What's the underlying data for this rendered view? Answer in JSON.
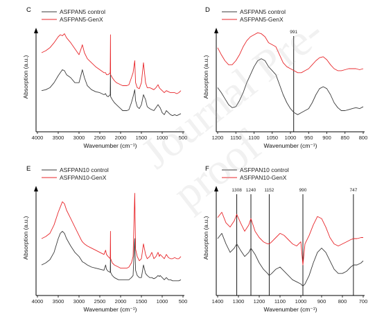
{
  "watermark": "Journal Pre-proof",
  "colors": {
    "control": "#3a3a3a",
    "genx": "#e8262a",
    "axis": "#000000"
  },
  "chart_data": [
    {
      "panel": "C",
      "type": "line",
      "xlabel": "Wavenumber (cm⁻¹)",
      "ylabel": "Absorption (a.u.)",
      "xlim": [
        4000,
        500
      ],
      "x_reversed": true,
      "xticks": [
        4000,
        3500,
        3000,
        2500,
        2000,
        1500,
        1000,
        500
      ],
      "legend_position": "top-left",
      "series": [
        {
          "name": "ASFPAN5 control",
          "color": "#3a3a3a",
          "x": [
            3900,
            3800,
            3700,
            3600,
            3500,
            3450,
            3400,
            3350,
            3300,
            3200,
            3100,
            3000,
            2950,
            2920,
            2870,
            2800,
            2700,
            2600,
            2500,
            2400,
            2360,
            2340,
            2300,
            2250,
            2244,
            2240,
            2200,
            2150,
            2100,
            2050,
            2000,
            1950,
            1900,
            1850,
            1800,
            1740,
            1700,
            1660,
            1640,
            1600,
            1550,
            1500,
            1450,
            1400,
            1360,
            1300,
            1250,
            1200,
            1150,
            1100,
            1070,
            1050,
            1000,
            950,
            900,
            850,
            800,
            750,
            700,
            650,
            600,
            550
          ],
          "y": [
            0.42,
            0.43,
            0.45,
            0.5,
            0.57,
            0.6,
            0.63,
            0.62,
            0.58,
            0.55,
            0.5,
            0.5,
            0.58,
            0.63,
            0.55,
            0.47,
            0.43,
            0.41,
            0.4,
            0.38,
            0.39,
            0.37,
            0.36,
            0.38,
            0.7,
            0.36,
            0.33,
            0.3,
            0.28,
            0.26,
            0.24,
            0.22,
            0.22,
            0.22,
            0.23,
            0.3,
            0.36,
            0.43,
            0.32,
            0.26,
            0.24,
            0.28,
            0.38,
            0.33,
            0.26,
            0.24,
            0.23,
            0.22,
            0.25,
            0.28,
            0.26,
            0.25,
            0.2,
            0.18,
            0.22,
            0.2,
            0.18,
            0.17,
            0.18,
            0.17,
            0.18,
            0.19
          ]
        },
        {
          "name": "ASFPAN5-GenX",
          "color": "#e8262a",
          "x": [
            3900,
            3800,
            3700,
            3600,
            3500,
            3450,
            3400,
            3350,
            3300,
            3200,
            3100,
            3000,
            2950,
            2920,
            2870,
            2800,
            2700,
            2600,
            2500,
            2400,
            2360,
            2340,
            2300,
            2250,
            2244,
            2240,
            2200,
            2150,
            2100,
            2050,
            2000,
            1950,
            1900,
            1850,
            1800,
            1740,
            1700,
            1660,
            1640,
            1600,
            1550,
            1500,
            1450,
            1400,
            1360,
            1300,
            1250,
            1200,
            1150,
            1100,
            1070,
            1050,
            1000,
            950,
            900,
            850,
            800,
            750,
            700,
            650,
            600,
            550
          ],
          "y": [
            0.8,
            0.82,
            0.85,
            0.9,
            0.96,
            0.98,
            0.97,
            0.99,
            0.95,
            0.9,
            0.84,
            0.78,
            0.84,
            0.88,
            0.8,
            0.74,
            0.7,
            0.66,
            0.63,
            0.6,
            0.6,
            0.58,
            0.58,
            0.6,
            0.98,
            0.58,
            0.55,
            0.52,
            0.5,
            0.49,
            0.48,
            0.47,
            0.47,
            0.47,
            0.48,
            0.55,
            0.6,
            0.72,
            0.5,
            0.45,
            0.44,
            0.5,
            0.7,
            0.5,
            0.45,
            0.45,
            0.44,
            0.43,
            0.45,
            0.48,
            0.45,
            0.44,
            0.42,
            0.4,
            0.42,
            0.41,
            0.4,
            0.4,
            0.4,
            0.39,
            0.4,
            0.42
          ]
        }
      ]
    },
    {
      "panel": "D",
      "type": "line",
      "xlabel": "Wavenumber (cm⁻¹)",
      "ylabel": "Absorption (a.u.)",
      "xlim": [
        1200,
        800
      ],
      "x_reversed": true,
      "xticks": [
        1200,
        1150,
        1100,
        1050,
        1000,
        950,
        900,
        850,
        800
      ],
      "markers": [
        991
      ],
      "legend_position": "top-left",
      "series": [
        {
          "name": "ASFPAN5 control",
          "color": "#3a3a3a",
          "x": [
            1200,
            1190,
            1180,
            1170,
            1160,
            1150,
            1140,
            1130,
            1120,
            1110,
            1100,
            1090,
            1080,
            1070,
            1060,
            1050,
            1040,
            1030,
            1020,
            1010,
            1000,
            990,
            980,
            970,
            960,
            950,
            940,
            930,
            920,
            910,
            900,
            890,
            880,
            870,
            860,
            850,
            840,
            830,
            820,
            810,
            800
          ],
          "y": [
            0.45,
            0.4,
            0.34,
            0.28,
            0.25,
            0.26,
            0.32,
            0.4,
            0.5,
            0.58,
            0.66,
            0.72,
            0.74,
            0.72,
            0.66,
            0.62,
            0.58,
            0.48,
            0.38,
            0.3,
            0.24,
            0.2,
            0.18,
            0.2,
            0.22,
            0.24,
            0.3,
            0.38,
            0.44,
            0.46,
            0.44,
            0.38,
            0.3,
            0.25,
            0.22,
            0.22,
            0.23,
            0.24,
            0.25,
            0.24,
            0.26
          ]
        },
        {
          "name": "ASFPAN5-GenX",
          "color": "#e8262a",
          "x": [
            1200,
            1190,
            1180,
            1170,
            1160,
            1150,
            1140,
            1130,
            1120,
            1110,
            1100,
            1090,
            1080,
            1070,
            1060,
            1050,
            1040,
            1030,
            1020,
            1010,
            1000,
            990,
            980,
            970,
            960,
            950,
            940,
            930,
            920,
            910,
            900,
            890,
            880,
            870,
            860,
            850,
            840,
            830,
            820,
            810,
            800
          ],
          "y": [
            0.85,
            0.78,
            0.72,
            0.68,
            0.68,
            0.72,
            0.78,
            0.86,
            0.92,
            0.96,
            0.98,
            1.0,
            0.99,
            0.96,
            0.9,
            0.88,
            0.86,
            0.78,
            0.7,
            0.66,
            0.64,
            0.62,
            0.6,
            0.6,
            0.62,
            0.64,
            0.68,
            0.72,
            0.75,
            0.76,
            0.73,
            0.68,
            0.64,
            0.62,
            0.62,
            0.63,
            0.64,
            0.64,
            0.64,
            0.63,
            0.64
          ]
        }
      ]
    },
    {
      "panel": "E",
      "type": "line",
      "xlabel": "Wavenumber (cm⁻¹)",
      "ylabel": "Absorption (a.u.)",
      "xlim": [
        4000,
        500
      ],
      "x_reversed": true,
      "xticks": [
        4000,
        3500,
        3000,
        2500,
        2000,
        1500,
        1000,
        500
      ],
      "legend_position": "top-left",
      "series": [
        {
          "name": "ASFPAN10 control",
          "color": "#3a3a3a",
          "x": [
            3900,
            3800,
            3700,
            3600,
            3500,
            3450,
            3400,
            3350,
            3300,
            3200,
            3100,
            3000,
            2950,
            2920,
            2870,
            2800,
            2700,
            2600,
            2500,
            2400,
            2360,
            2340,
            2300,
            2250,
            2244,
            2240,
            2200,
            2150,
            2100,
            2050,
            2000,
            1950,
            1900,
            1850,
            1800,
            1740,
            1700,
            1660,
            1640,
            1600,
            1550,
            1500,
            1450,
            1400,
            1360,
            1300,
            1250,
            1200,
            1150,
            1100,
            1070,
            1050,
            1000,
            950,
            900,
            850,
            800,
            750,
            700,
            650,
            600,
            550
          ],
          "y": [
            0.3,
            0.32,
            0.35,
            0.42,
            0.55,
            0.6,
            0.62,
            0.6,
            0.55,
            0.48,
            0.42,
            0.38,
            0.35,
            0.33,
            0.32,
            0.3,
            0.28,
            0.27,
            0.26,
            0.25,
            0.3,
            0.26,
            0.24,
            0.23,
            0.4,
            0.23,
            0.2,
            0.18,
            0.17,
            0.16,
            0.16,
            0.16,
            0.16,
            0.16,
            0.16,
            0.18,
            0.2,
            0.55,
            0.25,
            0.2,
            0.18,
            0.18,
            0.3,
            0.22,
            0.2,
            0.18,
            0.18,
            0.17,
            0.18,
            0.2,
            0.19,
            0.2,
            0.18,
            0.16,
            0.18,
            0.16,
            0.16,
            0.15,
            0.15,
            0.15,
            0.15,
            0.16
          ]
        },
        {
          "name": "ASFPAN10-GenX",
          "color": "#e8262a",
          "x": [
            3900,
            3800,
            3700,
            3600,
            3500,
            3450,
            3400,
            3350,
            3300,
            3200,
            3100,
            3000,
            2950,
            2920,
            2870,
            2800,
            2700,
            2600,
            2500,
            2400,
            2360,
            2340,
            2300,
            2250,
            2244,
            2240,
            2200,
            2150,
            2100,
            2050,
            2000,
            1950,
            1900,
            1850,
            1800,
            1740,
            1700,
            1660,
            1640,
            1600,
            1550,
            1500,
            1450,
            1400,
            1360,
            1300,
            1250,
            1200,
            1150,
            1100,
            1070,
            1050,
            1000,
            950,
            900,
            850,
            800,
            750,
            700,
            650,
            600,
            550
          ],
          "y": [
            0.55,
            0.57,
            0.6,
            0.68,
            0.8,
            0.85,
            0.9,
            0.88,
            0.82,
            0.74,
            0.66,
            0.58,
            0.54,
            0.52,
            0.5,
            0.48,
            0.46,
            0.44,
            0.42,
            0.4,
            0.44,
            0.4,
            0.38,
            0.36,
            0.62,
            0.36,
            0.32,
            0.3,
            0.29,
            0.28,
            0.27,
            0.27,
            0.27,
            0.27,
            0.28,
            0.32,
            0.38,
            0.98,
            0.45,
            0.38,
            0.34,
            0.36,
            0.5,
            0.4,
            0.36,
            0.38,
            0.42,
            0.36,
            0.38,
            0.42,
            0.38,
            0.4,
            0.38,
            0.36,
            0.4,
            0.37,
            0.36,
            0.36,
            0.37,
            0.36,
            0.36,
            0.38
          ]
        }
      ]
    },
    {
      "panel": "F",
      "type": "line",
      "xlabel": "Wavenumber (cm⁻¹)",
      "ylabel": "Absorption (a.u.)",
      "xlim": [
        1400,
        700
      ],
      "x_reversed": true,
      "xticks": [
        1400,
        1300,
        1200,
        1100,
        1000,
        900,
        800,
        700
      ],
      "markers": [
        1308,
        1240,
        1152,
        990,
        747
      ],
      "legend_position": "top-left",
      "series": [
        {
          "name": "ASFPAN10 control",
          "color": "#3a3a3a",
          "x": [
            1400,
            1380,
            1360,
            1340,
            1320,
            1308,
            1290,
            1270,
            1250,
            1240,
            1220,
            1200,
            1180,
            1160,
            1152,
            1140,
            1120,
            1100,
            1080,
            1060,
            1040,
            1020,
            1000,
            990,
            980,
            960,
            940,
            920,
            900,
            880,
            860,
            840,
            820,
            800,
            780,
            760,
            747,
            730,
            710,
            700
          ],
          "y": [
            0.55,
            0.6,
            0.5,
            0.42,
            0.46,
            0.5,
            0.44,
            0.38,
            0.42,
            0.46,
            0.4,
            0.32,
            0.26,
            0.22,
            0.2,
            0.22,
            0.26,
            0.28,
            0.24,
            0.2,
            0.16,
            0.14,
            0.12,
            0.1,
            0.12,
            0.2,
            0.32,
            0.42,
            0.46,
            0.42,
            0.34,
            0.26,
            0.22,
            0.22,
            0.24,
            0.28,
            0.3,
            0.3,
            0.32,
            0.34
          ]
        },
        {
          "name": "ASFPAN10-GenX",
          "color": "#e8262a",
          "x": [
            1400,
            1380,
            1360,
            1340,
            1320,
            1308,
            1290,
            1270,
            1250,
            1240,
            1220,
            1200,
            1180,
            1160,
            1152,
            1140,
            1120,
            1100,
            1080,
            1060,
            1040,
            1020,
            1000,
            990,
            980,
            960,
            940,
            920,
            900,
            880,
            860,
            840,
            820,
            800,
            780,
            760,
            747,
            730,
            710,
            700
          ],
          "y": [
            0.75,
            0.8,
            0.7,
            0.66,
            0.72,
            0.78,
            0.7,
            0.62,
            0.68,
            0.74,
            0.62,
            0.56,
            0.52,
            0.5,
            0.5,
            0.52,
            0.56,
            0.6,
            0.58,
            0.54,
            0.5,
            0.48,
            0.52,
            0.3,
            0.5,
            0.58,
            0.68,
            0.76,
            0.74,
            0.66,
            0.56,
            0.5,
            0.48,
            0.5,
            0.52,
            0.54,
            0.55,
            0.55,
            0.56,
            0.56
          ]
        }
      ]
    }
  ]
}
